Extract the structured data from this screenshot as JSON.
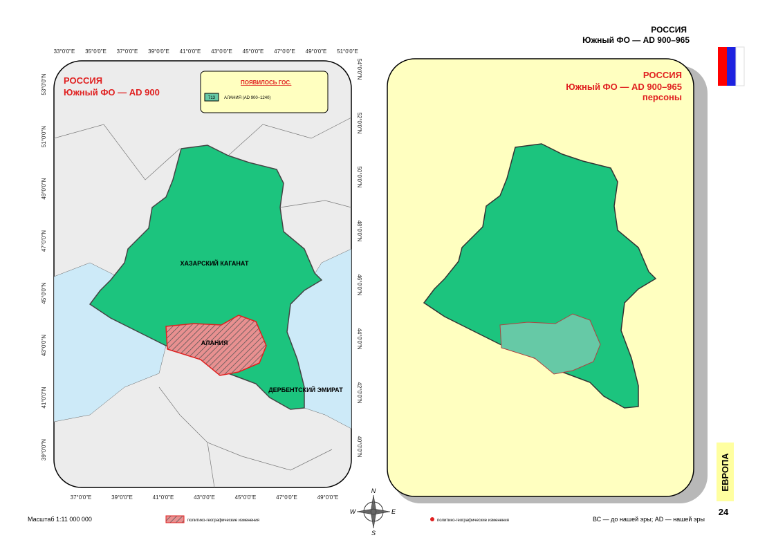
{
  "header": {
    "title": "РОССИЯ",
    "subtitle": "Южный ФО — AD 900–965"
  },
  "left_map": {
    "title": "РОССИЯ",
    "subtitle": "Южный ФО — AD 900",
    "legend": {
      "title": "ПОЯВИЛОСЬ ГОС.",
      "items": [
        {
          "code": "713",
          "label": "АЛАНИЯ (AD 900–1240)"
        }
      ]
    },
    "labels": [
      "ХАЗАРСКИЙ КАГАНАТ",
      "АЛАНИЯ",
      "ДЕРБЕНТСКИЙ ЭМИРАТ"
    ],
    "top_ticks": [
      "33°0'0\"E",
      "35°0'0\"E",
      "37°0'0\"E",
      "39°0'0\"E",
      "41°0'0\"E",
      "43°0'0\"E",
      "45°0'0\"E",
      "47°0'0\"E",
      "49°0'0\"E",
      "51°0'0\"E"
    ],
    "bottom_ticks": [
      "37°0'0\"E",
      "39°0'0\"E",
      "41°0'0\"E",
      "43°0'0\"E",
      "45°0'0\"E",
      "47°0'0\"E",
      "49°0'0\"E"
    ],
    "left_ticks": [
      "53°0'0\"N",
      "51°0'0\"N",
      "49°0'0\"N",
      "47°0'0\"N",
      "45°0'0\"N",
      "43°0'0\"N",
      "41°0'0\"N",
      "39°0'0\"N"
    ],
    "right_ticks": [
      "54°0'0\"N",
      "52°0'0\"N",
      "50°0'0\"N",
      "48°0'0\"N",
      "46°0'0\"N",
      "44°0'0\"N",
      "42°0'0\"N",
      "40°0'0\"N"
    ]
  },
  "right_map": {
    "title": "РОССИЯ",
    "subtitle": "Южный ФО — AD 900–965",
    "note": "персоны"
  },
  "compass": [
    "N",
    "E",
    "S",
    "W"
  ],
  "side": {
    "section": "ЕВРОПА",
    "page": "24"
  },
  "footer": {
    "scale": "Масштаб 1:11 000 000",
    "legend_hatch": "политико-географические изменения",
    "legend_dot": "политико-географические изменения",
    "era_note": "ВС — до нашей эры; AD — нашей эры"
  }
}
